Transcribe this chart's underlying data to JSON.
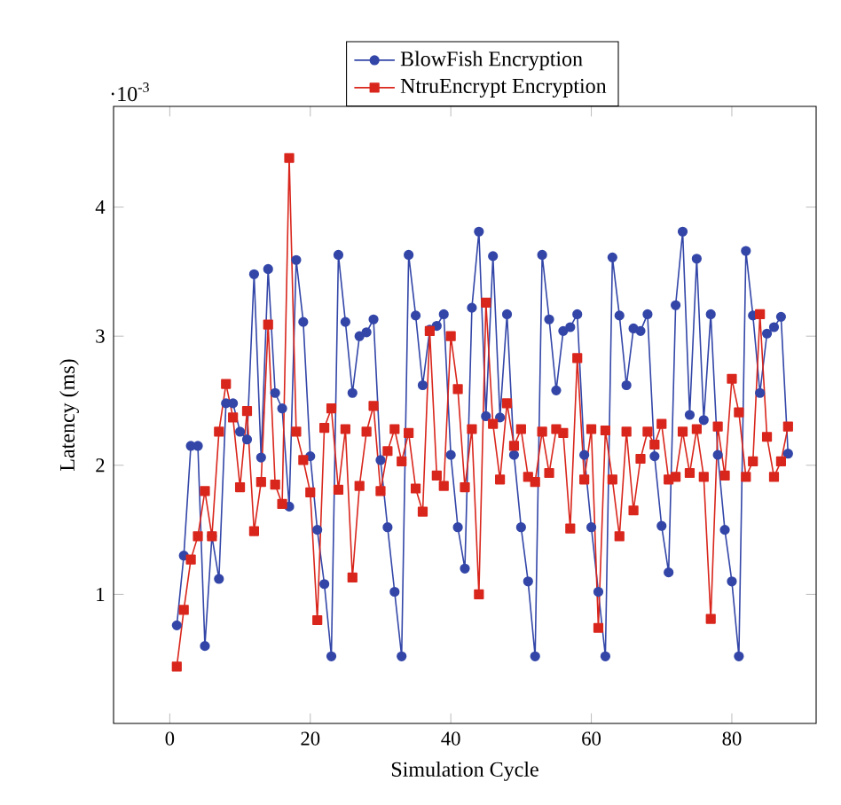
{
  "chart_data": {
    "type": "line",
    "xlabel": "Simulation Cycle",
    "ylabel": "Latency (ms)",
    "annotations": [
      "·10$^{-3}$"
    ],
    "x": [
      1,
      2,
      3,
      4,
      5,
      6,
      7,
      8,
      9,
      10,
      11,
      12,
      13,
      14,
      15,
      16,
      17,
      18,
      19,
      20,
      21,
      22,
      23,
      24,
      25,
      26,
      27,
      28,
      29,
      30,
      31,
      32,
      33,
      34,
      35,
      36,
      37,
      38,
      39,
      40,
      41,
      42,
      43,
      44,
      45,
      46,
      47,
      48,
      49,
      50,
      51,
      52,
      53,
      54,
      55,
      56,
      57,
      58,
      59,
      60,
      61,
      62,
      63,
      64,
      65,
      66,
      67,
      68,
      69,
      70,
      71,
      72,
      73,
      74,
      75,
      76,
      77,
      78,
      79,
      80,
      81,
      82,
      83,
      84,
      85,
      86,
      87,
      88
    ],
    "series": [
      {
        "name": "BlowFish Encryption",
        "color": "#3346a8",
        "marker": "circle",
        "values": [
          0.76,
          1.3,
          2.15,
          2.15,
          0.6,
          1.45,
          1.12,
          2.48,
          2.48,
          2.26,
          2.2,
          3.48,
          2.06,
          3.52,
          2.56,
          2.44,
          1.68,
          3.59,
          3.11,
          2.07,
          1.5,
          1.08,
          0.52,
          3.63,
          3.11,
          2.56,
          3.0,
          3.03,
          3.13,
          2.04,
          1.52,
          1.02,
          0.52,
          3.63,
          3.16,
          2.62,
          3.05,
          3.08,
          3.17,
          2.08,
          1.52,
          1.2,
          3.22,
          3.81,
          2.38,
          3.62,
          2.37,
          3.17,
          2.08,
          1.52,
          1.1,
          0.52,
          3.63,
          3.13,
          2.58,
          3.04,
          3.07,
          3.17,
          2.08,
          1.52,
          1.02,
          0.52,
          3.61,
          3.16,
          2.62,
          3.06,
          3.04,
          3.17,
          2.07,
          1.53,
          1.17,
          3.24,
          3.81,
          2.39,
          3.6,
          2.35,
          3.17,
          2.08,
          1.5,
          1.1,
          0.52,
          3.66,
          3.16,
          2.56,
          3.02,
          3.07,
          3.15,
          2.09
        ]
      },
      {
        "name": "NtruEncrypt Encryption",
        "color": "#d9261c",
        "marker": "square",
        "values": [
          0.44,
          0.88,
          1.27,
          1.45,
          1.8,
          1.45,
          2.26,
          2.63,
          2.37,
          1.83,
          2.42,
          1.49,
          1.87,
          3.09,
          1.85,
          1.7,
          4.38,
          2.26,
          2.04,
          1.79,
          0.8,
          2.29,
          2.44,
          1.81,
          2.28,
          1.13,
          1.84,
          2.26,
          2.46,
          1.8,
          2.11,
          2.28,
          2.03,
          2.25,
          1.82,
          1.64,
          3.04,
          1.92,
          1.84,
          3.0,
          2.59,
          1.83,
          2.28,
          1.0,
          3.26,
          2.32,
          1.89,
          2.48,
          2.15,
          2.28,
          1.91,
          1.87,
          2.26,
          1.94,
          2.28,
          2.25,
          1.51,
          2.83,
          1.89,
          2.28,
          0.74,
          2.27,
          1.89,
          1.45,
          2.26,
          1.65,
          2.05,
          2.26,
          2.16,
          2.32,
          1.89,
          1.91,
          2.26,
          1.94,
          2.28,
          1.91,
          0.81,
          2.3,
          1.92,
          2.67,
          2.41,
          1.91,
          2.03,
          3.17,
          2.22,
          1.91,
          2.03,
          2.3
        ]
      }
    ],
    "xlim": [
      -8,
      92
    ],
    "ylim": [
      0,
      4.78
    ],
    "xticks": [
      0,
      20,
      40,
      60,
      80
    ],
    "yticks": [
      1,
      2,
      3,
      4
    ],
    "line_style": "solid",
    "legend": "top",
    "grid": false
  }
}
